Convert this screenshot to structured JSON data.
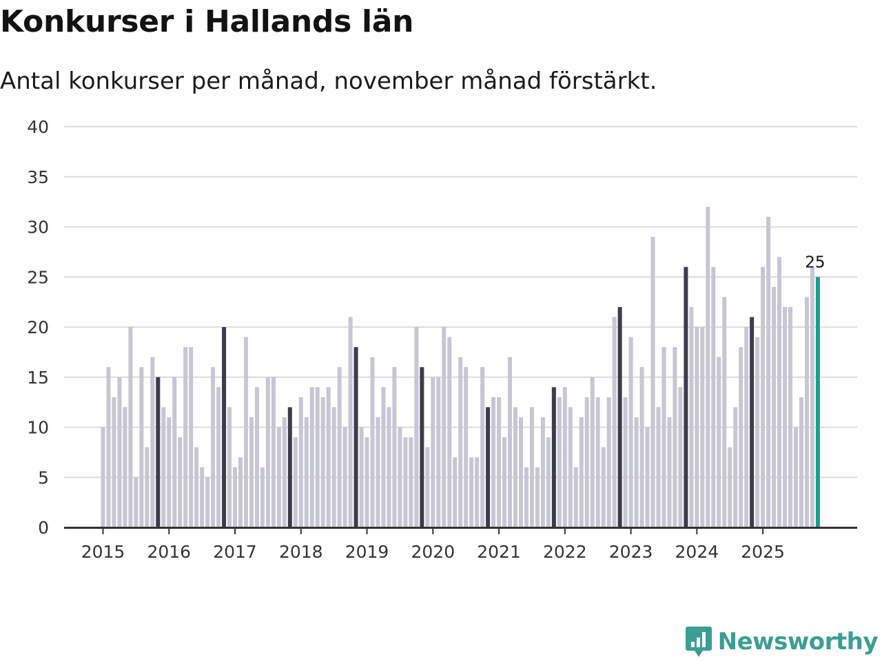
{
  "header": {
    "title": "Konkurser i Hallands län",
    "subtitle": "Antal konkurser per månad, november månad förstärkt."
  },
  "colors": {
    "bar_default": "#c7c6d3",
    "bar_highlight": "#3d3c4c",
    "bar_latest": "#1a9e8f",
    "grid": "#dcdcdc",
    "axis": "#333333",
    "brand": "#3a9e92"
  },
  "brand": {
    "name": "Newsworthy",
    "icon": "newsworthy-logo-icon"
  },
  "chart_data": {
    "type": "bar",
    "title": "Konkurser i Hallands län",
    "subtitle": "Antal konkurser per månad, november månad förstärkt.",
    "xlabel": "",
    "ylabel": "",
    "ylim": [
      0,
      40
    ],
    "yticks": [
      0,
      5,
      10,
      15,
      20,
      25,
      30,
      35,
      40
    ],
    "grid": true,
    "start": "2015-01",
    "frequency": "month",
    "year_labels": [
      "2015",
      "2016",
      "2017",
      "2018",
      "2019",
      "2020",
      "2021",
      "2022",
      "2023",
      "2024",
      "2025"
    ],
    "highlight_month": "november",
    "latest_label": "25",
    "values": [
      10,
      16,
      13,
      15,
      12,
      20,
      5,
      16,
      8,
      17,
      15,
      12,
      11,
      15,
      9,
      18,
      18,
      8,
      6,
      5,
      16,
      14,
      20,
      12,
      6,
      7,
      19,
      11,
      14,
      6,
      15,
      15,
      10,
      11,
      12,
      9,
      13,
      11,
      14,
      14,
      13,
      14,
      12,
      16,
      10,
      21,
      18,
      10,
      9,
      17,
      11,
      14,
      12,
      16,
      10,
      9,
      9,
      20,
      16,
      8,
      15,
      15,
      20,
      19,
      7,
      17,
      16,
      7,
      7,
      16,
      12,
      13,
      13,
      9,
      17,
      12,
      11,
      6,
      12,
      6,
      11,
      9,
      14,
      13,
      14,
      12,
      6,
      11,
      13,
      15,
      13,
      8,
      13,
      21,
      22,
      13,
      19,
      11,
      16,
      10,
      29,
      12,
      18,
      11,
      18,
      14,
      26,
      22,
      20,
      20,
      32,
      26,
      17,
      23,
      8,
      12,
      18,
      20,
      21,
      19,
      26,
      31,
      24,
      27,
      22,
      22,
      10,
      13,
      23,
      26,
      25
    ]
  }
}
